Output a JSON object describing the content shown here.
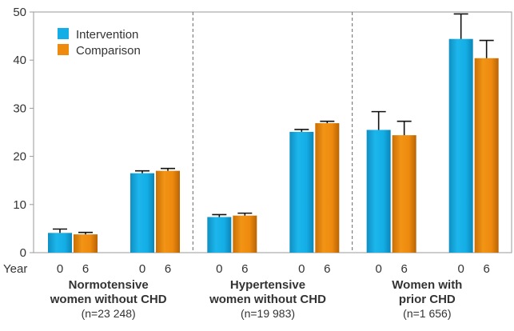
{
  "chart_data": {
    "type": "bar",
    "ylim": [
      0,
      50
    ],
    "y_ticks": [
      0,
      10,
      20,
      30,
      40,
      50
    ],
    "year_label": "Year",
    "legend": {
      "position": "top-left",
      "entries": [
        {
          "label": "Intervention",
          "color": "#14aee6"
        },
        {
          "label": "Comparison",
          "color": "#ee8a0e"
        }
      ]
    },
    "groups": [
      {
        "title_lines": [
          "Normotensive",
          "women without CHD"
        ],
        "n_label": "(n=23 248)",
        "bars": [
          {
            "series": "Intervention",
            "year": "0",
            "value": 4.1,
            "error": 0.8
          },
          {
            "series": "Comparison",
            "year": "6",
            "value": 3.8,
            "error": 0.4
          },
          {
            "series": "Intervention",
            "year": "0",
            "value": 16.5,
            "error": 0.5
          },
          {
            "series": "Comparison",
            "year": "6",
            "value": 17.0,
            "error": 0.5
          }
        ]
      },
      {
        "title_lines": [
          "Hypertensive",
          "women without CHD"
        ],
        "n_label": "(n=19 983)",
        "bars": [
          {
            "series": "Intervention",
            "year": "0",
            "value": 7.4,
            "error": 0.5
          },
          {
            "series": "Comparison",
            "year": "6",
            "value": 7.7,
            "error": 0.5
          },
          {
            "series": "Intervention",
            "year": "0",
            "value": 25.1,
            "error": 0.5
          },
          {
            "series": "Comparison",
            "year": "6",
            "value": 26.9,
            "error": 0.4
          }
        ]
      },
      {
        "title_lines": [
          "Women with",
          "prior CHD"
        ],
        "n_label": "(n=1 656)",
        "bars": [
          {
            "series": "Intervention",
            "year": "0",
            "value": 25.5,
            "error": 3.8
          },
          {
            "series": "Comparison",
            "year": "6",
            "value": 24.4,
            "error": 2.9
          },
          {
            "series": "Intervention",
            "year": "0",
            "value": 44.4,
            "error": 5.2
          },
          {
            "series": "Comparison",
            "year": "6",
            "value": 40.4,
            "error": 3.7
          }
        ]
      }
    ]
  }
}
